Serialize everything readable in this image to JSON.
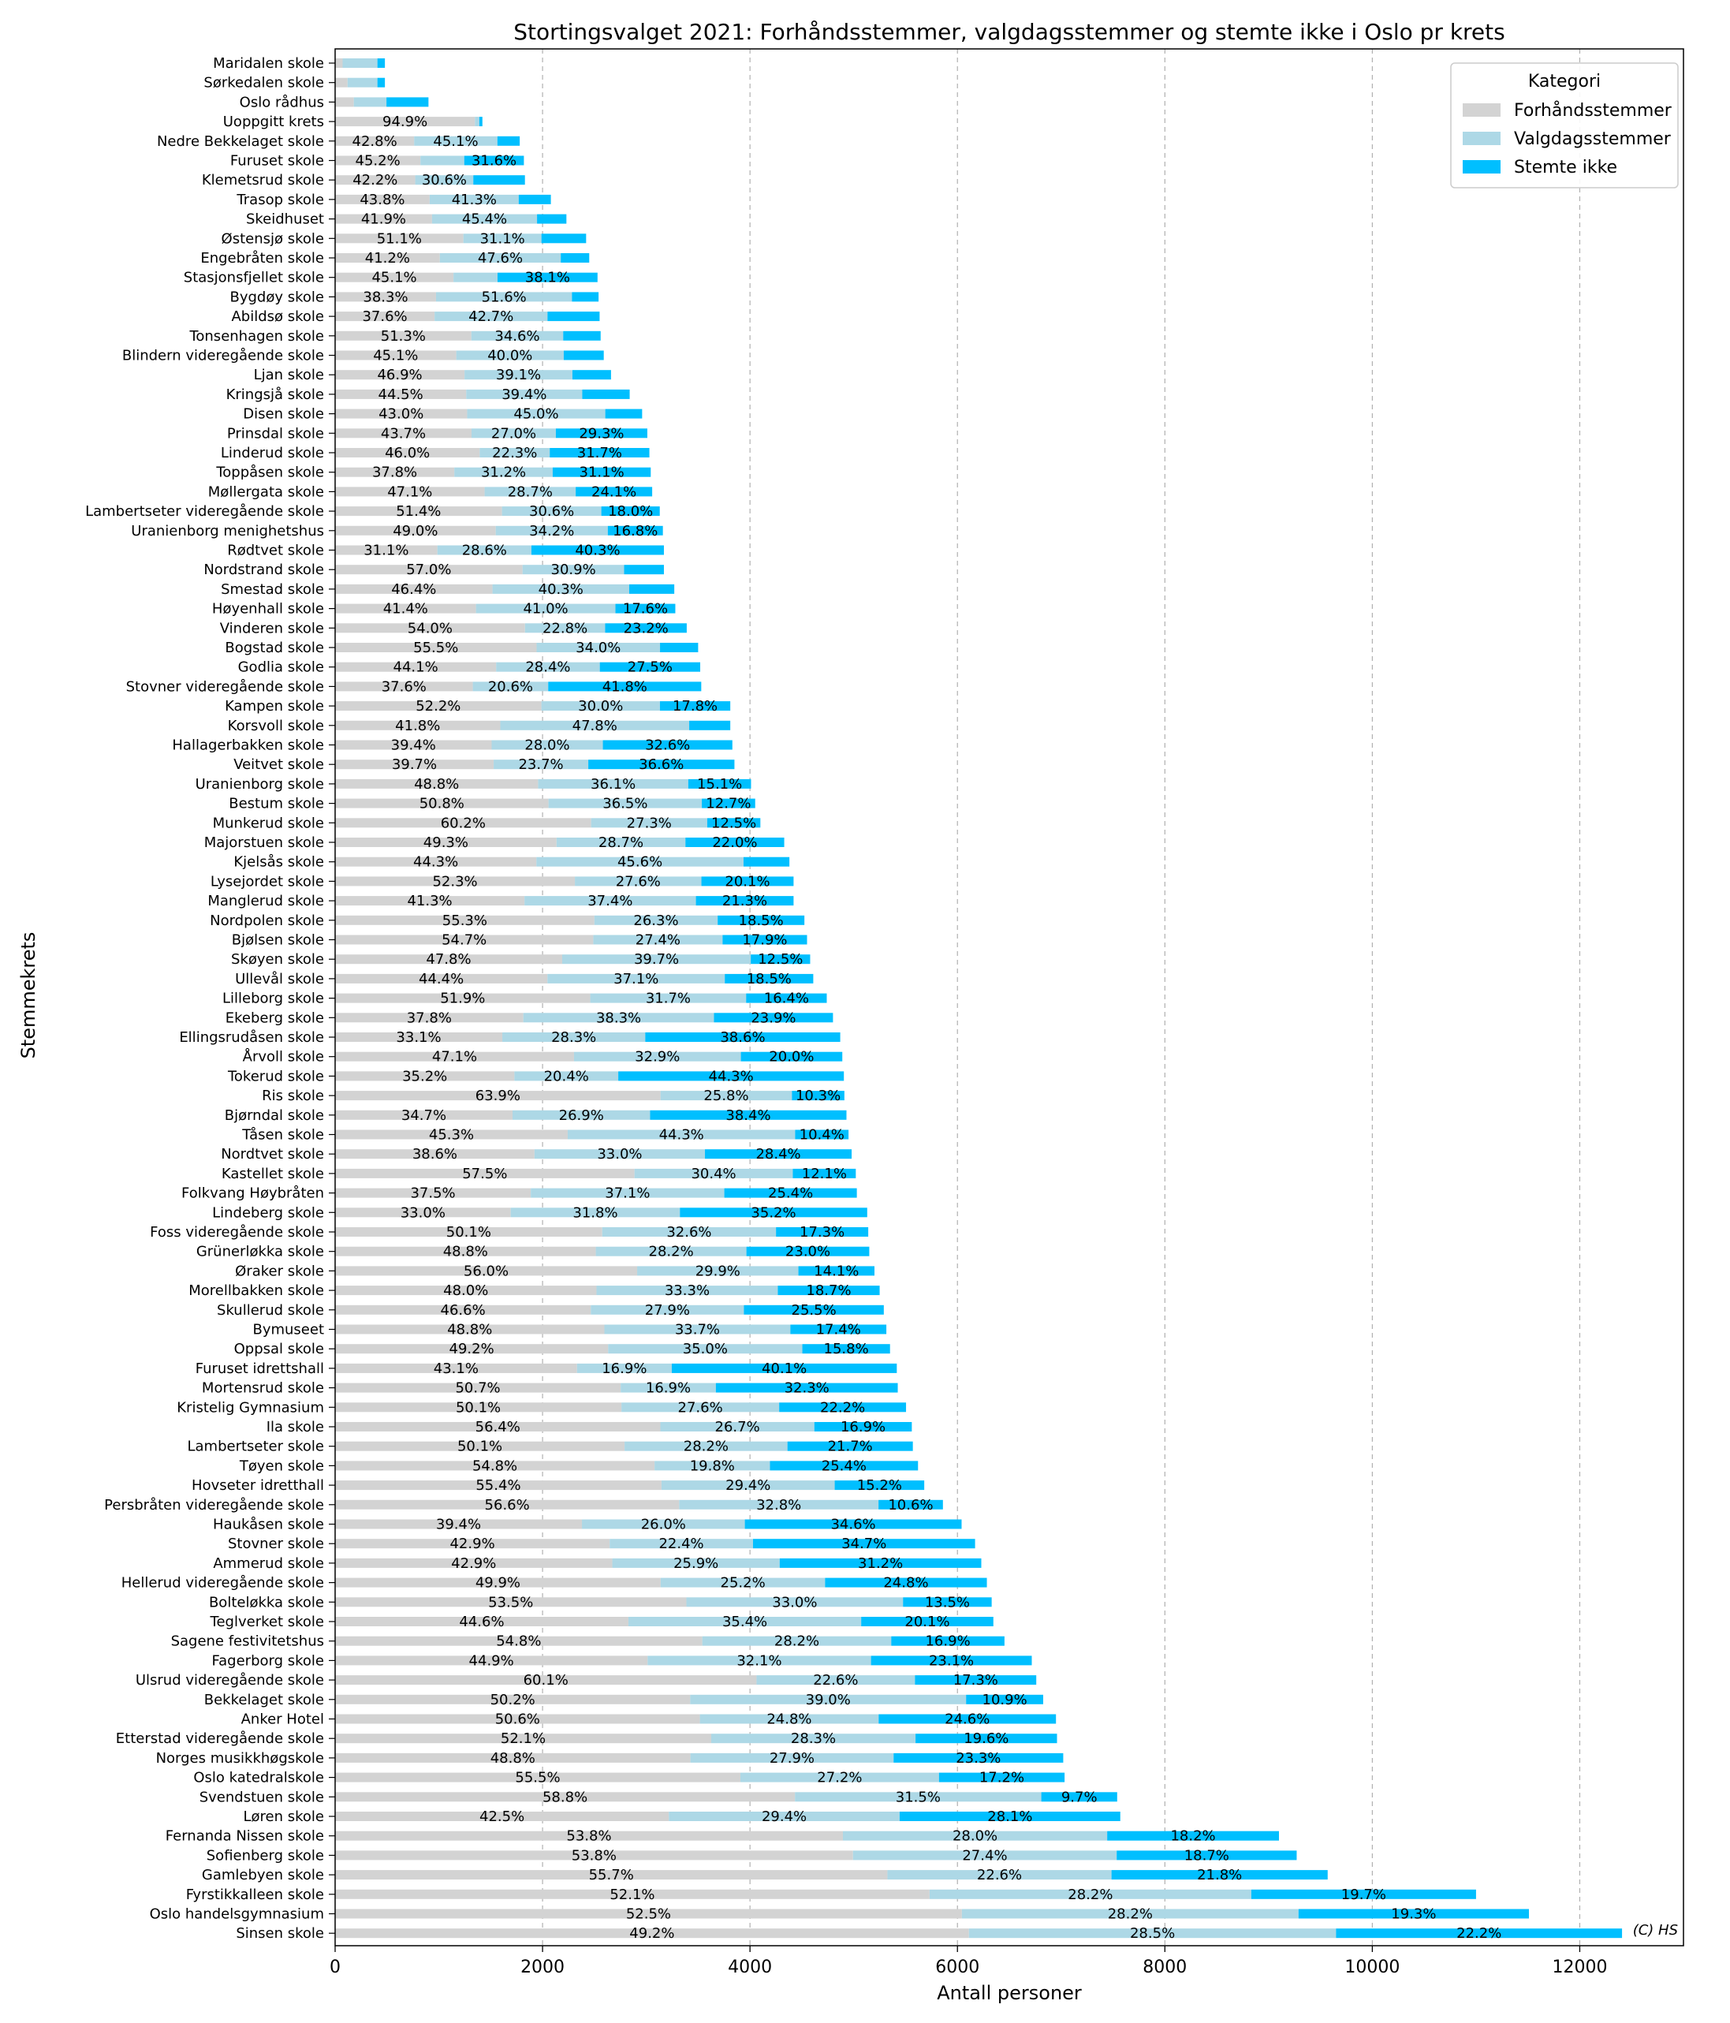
{
  "chart_data": {
    "type": "bar",
    "orientation": "horizontal",
    "stacked": true,
    "title": "Stortingsvalget 2021: Forhåndsstemmer, valgdagsstemmer og stemte ikke i Oslo pr krets",
    "xlabel": "Antall personer",
    "ylabel": "Stemmekrets",
    "xlim": [
      0,
      13000
    ],
    "xticks": [
      0,
      2000,
      4000,
      6000,
      8000,
      10000,
      12000
    ],
    "grid": "x-dashed",
    "legend": {
      "title": "Kategori",
      "placement": "top-right"
    },
    "credit": "(C) HS",
    "categories": [
      "Maridalen skole",
      "Sørkedalen skole",
      "Oslo rådhus",
      "Uoppgitt krets",
      "Nedre Bekkelaget skole",
      "Furuset skole",
      "Klemetsrud skole",
      "Trasop skole",
      "Skeidhuset",
      "Østensjø skole",
      "Engebråten skole",
      "Stasjonsfjellet skole",
      "Bygdøy skole",
      "Abildsø skole",
      "Tonsenhagen skole",
      "Blindern videregående skole",
      "Ljan skole",
      "Kringsjå skole",
      "Disen skole",
      "Prinsdal skole",
      "Linderud skole",
      "Toppåsen skole",
      "Møllergata skole",
      "Lambertseter videregående skole",
      "Uranienborg menighetshus",
      "Rødtvet skole",
      "Nordstrand skole",
      "Smestad skole",
      "Høyenhall skole",
      "Vinderen skole",
      "Bogstad skole",
      "Godlia skole",
      "Stovner videregående skole",
      "Kampen skole",
      "Korsvoll skole",
      "Hallagerbakken skole",
      "Veitvet skole",
      "Uranienborg skole",
      "Bestum skole",
      "Munkerud skole",
      "Majorstuen skole",
      "Kjelsås skole",
      "Lysejordet skole",
      "Manglerud skole",
      "Nordpolen skole",
      "Bjølsen skole",
      "Skøyen skole",
      "Ullevål skole",
      "Lilleborg skole",
      "Ekeberg skole",
      "Ellingsrudåsen skole",
      "Årvoll skole",
      "Tokerud skole",
      "Ris skole",
      "Bjørndal skole",
      "Tåsen skole",
      "Nordtvet skole",
      "Kastellet skole",
      "Folkvang Høybråten",
      "Lindeberg skole",
      "Foss videregående skole",
      "Grünerløkka skole",
      "Øraker skole",
      "Morellbakken skole",
      "Skullerud skole",
      "Bymuseet",
      "Oppsal skole",
      "Furuset idrettshall",
      "Mortensrud skole",
      "Kristelig Gymnasium",
      "Ila skole",
      "Lambertseter skole",
      "Tøyen skole",
      "Hovseter idretthall",
      "Persbråten videregående skole",
      "Haukåsen skole",
      "Stovner skole",
      "Ammerud skole",
      "Hellerud videregående skole",
      "Bolteløkka skole",
      "Teglverket skole",
      "Sagene festivitetshus",
      "Fagerborg skole",
      "Ulsrud videregående skole",
      "Bekkelaget skole",
      "Anker Hotel",
      "Etterstad videregående skole",
      "Norges musikkhøgskole",
      "Oslo katedralskole",
      "Svendstuen skole",
      "Løren skole",
      "Fernanda Nissen skole",
      "Sofienberg skole",
      "Gamlebyen skole",
      "Fyrstikkalleen skole",
      "Oslo handelsgymnasium",
      "Sinsen skole"
    ],
    "totals": [
      480,
      480,
      900,
      1420,
      1780,
      1820,
      1830,
      2080,
      2230,
      2420,
      2450,
      2530,
      2540,
      2550,
      2560,
      2590,
      2660,
      2840,
      2960,
      3010,
      3030,
      3040,
      3060,
      3130,
      3160,
      3170,
      3170,
      3270,
      3280,
      3390,
      3500,
      3520,
      3530,
      3810,
      3810,
      3830,
      3850,
      4010,
      4050,
      4100,
      4330,
      4380,
      4420,
      4420,
      4520,
      4550,
      4580,
      4610,
      4740,
      4800,
      4870,
      4890,
      4910,
      4910,
      4930,
      4950,
      4980,
      5020,
      5030,
      5130,
      5140,
      5150,
      5200,
      5250,
      5290,
      5320,
      5350,
      5410,
      5430,
      5510,
      5560,
      5570,
      5620,
      5680,
      5860,
      6040,
      6170,
      6230,
      6290,
      6330,
      6340,
      6460,
      6710,
      6760,
      6820,
      6950,
      6960,
      7020,
      7040,
      7540,
      7570,
      9100,
      9280,
      9560,
      11000,
      11510,
      12420
    ],
    "series": [
      {
        "name": "Forhåndsstemmer",
        "color": "#d3d3d3",
        "percents": [
          null,
          null,
          null,
          94.9,
          42.8,
          45.2,
          42.2,
          43.8,
          41.9,
          51.1,
          41.2,
          45.1,
          38.3,
          37.6,
          51.3,
          45.1,
          46.9,
          44.5,
          43.0,
          43.7,
          46.0,
          37.8,
          47.1,
          51.4,
          49.0,
          31.1,
          57.0,
          46.4,
          41.4,
          54.0,
          55.5,
          44.1,
          37.6,
          52.2,
          41.8,
          39.4,
          39.7,
          48.8,
          50.8,
          60.2,
          49.3,
          44.3,
          52.3,
          41.3,
          55.3,
          54.7,
          47.8,
          44.4,
          51.9,
          37.8,
          33.1,
          47.1,
          35.2,
          63.9,
          34.7,
          45.3,
          38.6,
          57.5,
          37.5,
          33.0,
          50.1,
          48.8,
          56.0,
          48.0,
          46.6,
          48.8,
          49.2,
          43.1,
          50.7,
          50.1,
          56.4,
          50.1,
          54.8,
          55.4,
          56.6,
          39.4,
          42.9,
          42.9,
          49.9,
          53.5,
          44.6,
          54.8,
          44.9,
          60.1,
          50.2,
          50.6,
          52.1,
          48.8,
          55.5,
          58.8,
          42.5,
          53.8,
          53.8,
          55.7,
          52.1,
          52.5,
          49.2
        ]
      },
      {
        "name": "Valgdagsstemmer",
        "color": "#add8e6",
        "percents": [
          null,
          null,
          null,
          null,
          45.1,
          null,
          30.6,
          41.3,
          45.4,
          31.1,
          47.6,
          null,
          51.6,
          42.7,
          34.6,
          40.0,
          39.1,
          39.4,
          45.0,
          27.0,
          22.3,
          31.2,
          28.7,
          30.6,
          34.2,
          28.6,
          30.9,
          40.3,
          41.0,
          22.8,
          34.0,
          28.4,
          20.6,
          30.0,
          47.8,
          28.0,
          23.7,
          36.1,
          36.5,
          27.3,
          28.7,
          45.6,
          27.6,
          37.4,
          26.3,
          27.4,
          39.7,
          37.1,
          31.7,
          38.3,
          28.3,
          32.9,
          20.4,
          25.8,
          26.9,
          44.3,
          33.0,
          30.4,
          37.1,
          31.8,
          32.6,
          28.2,
          29.9,
          33.3,
          27.9,
          33.7,
          35.0,
          16.9,
          16.9,
          27.6,
          26.7,
          28.2,
          19.8,
          29.4,
          32.8,
          26.0,
          22.4,
          25.9,
          25.2,
          33.0,
          35.4,
          28.2,
          32.1,
          22.6,
          39.0,
          24.8,
          28.3,
          27.9,
          27.2,
          31.5,
          29.4,
          28.0,
          27.4,
          22.6,
          28.2,
          28.2,
          28.5
        ]
      },
      {
        "name": "Stemte ikke",
        "color": "#00bfff",
        "percents": [
          null,
          null,
          null,
          null,
          null,
          31.6,
          null,
          null,
          null,
          null,
          null,
          38.1,
          null,
          null,
          null,
          null,
          null,
          null,
          null,
          29.3,
          31.7,
          31.1,
          24.1,
          18.0,
          16.8,
          40.3,
          null,
          null,
          17.6,
          23.2,
          null,
          27.5,
          41.8,
          17.8,
          null,
          32.6,
          36.6,
          15.1,
          12.7,
          12.5,
          22.0,
          null,
          20.1,
          21.3,
          18.5,
          17.9,
          12.5,
          18.5,
          16.4,
          23.9,
          38.6,
          20.0,
          44.3,
          10.3,
          38.4,
          10.4,
          28.4,
          12.1,
          25.4,
          35.2,
          17.3,
          23.0,
          14.1,
          18.7,
          25.5,
          17.4,
          15.8,
          40.1,
          32.3,
          22.2,
          16.9,
          21.7,
          25.4,
          15.2,
          10.6,
          34.6,
          34.7,
          31.2,
          24.8,
          13.5,
          20.1,
          16.9,
          23.1,
          17.3,
          10.9,
          24.6,
          19.6,
          23.3,
          17.2,
          9.7,
          28.1,
          18.2,
          18.7,
          21.8,
          19.7,
          19.3,
          22.2
        ]
      }
    ],
    "small_bar_shares": {
      "Maridalen skole": [
        0.15,
        0.7,
        0.15
      ],
      "Sørkedalen skole": [
        0.25,
        0.6,
        0.15
      ],
      "Oslo rådhus": [
        0.2,
        0.35,
        0.45
      ],
      "Nedre Bekkelaget skole": [
        0.428,
        0.451,
        0.121
      ],
      "Furuset skole": [
        0.452,
        0.232,
        0.316
      ],
      "Klemetsrud skole": [
        0.422,
        0.306,
        0.272
      ],
      "Stasjonsfjellet skole": [
        0.451,
        0.168,
        0.381
      ],
      "Uoppgitt krets": [
        0.949,
        0.03,
        0.021
      ]
    }
  }
}
